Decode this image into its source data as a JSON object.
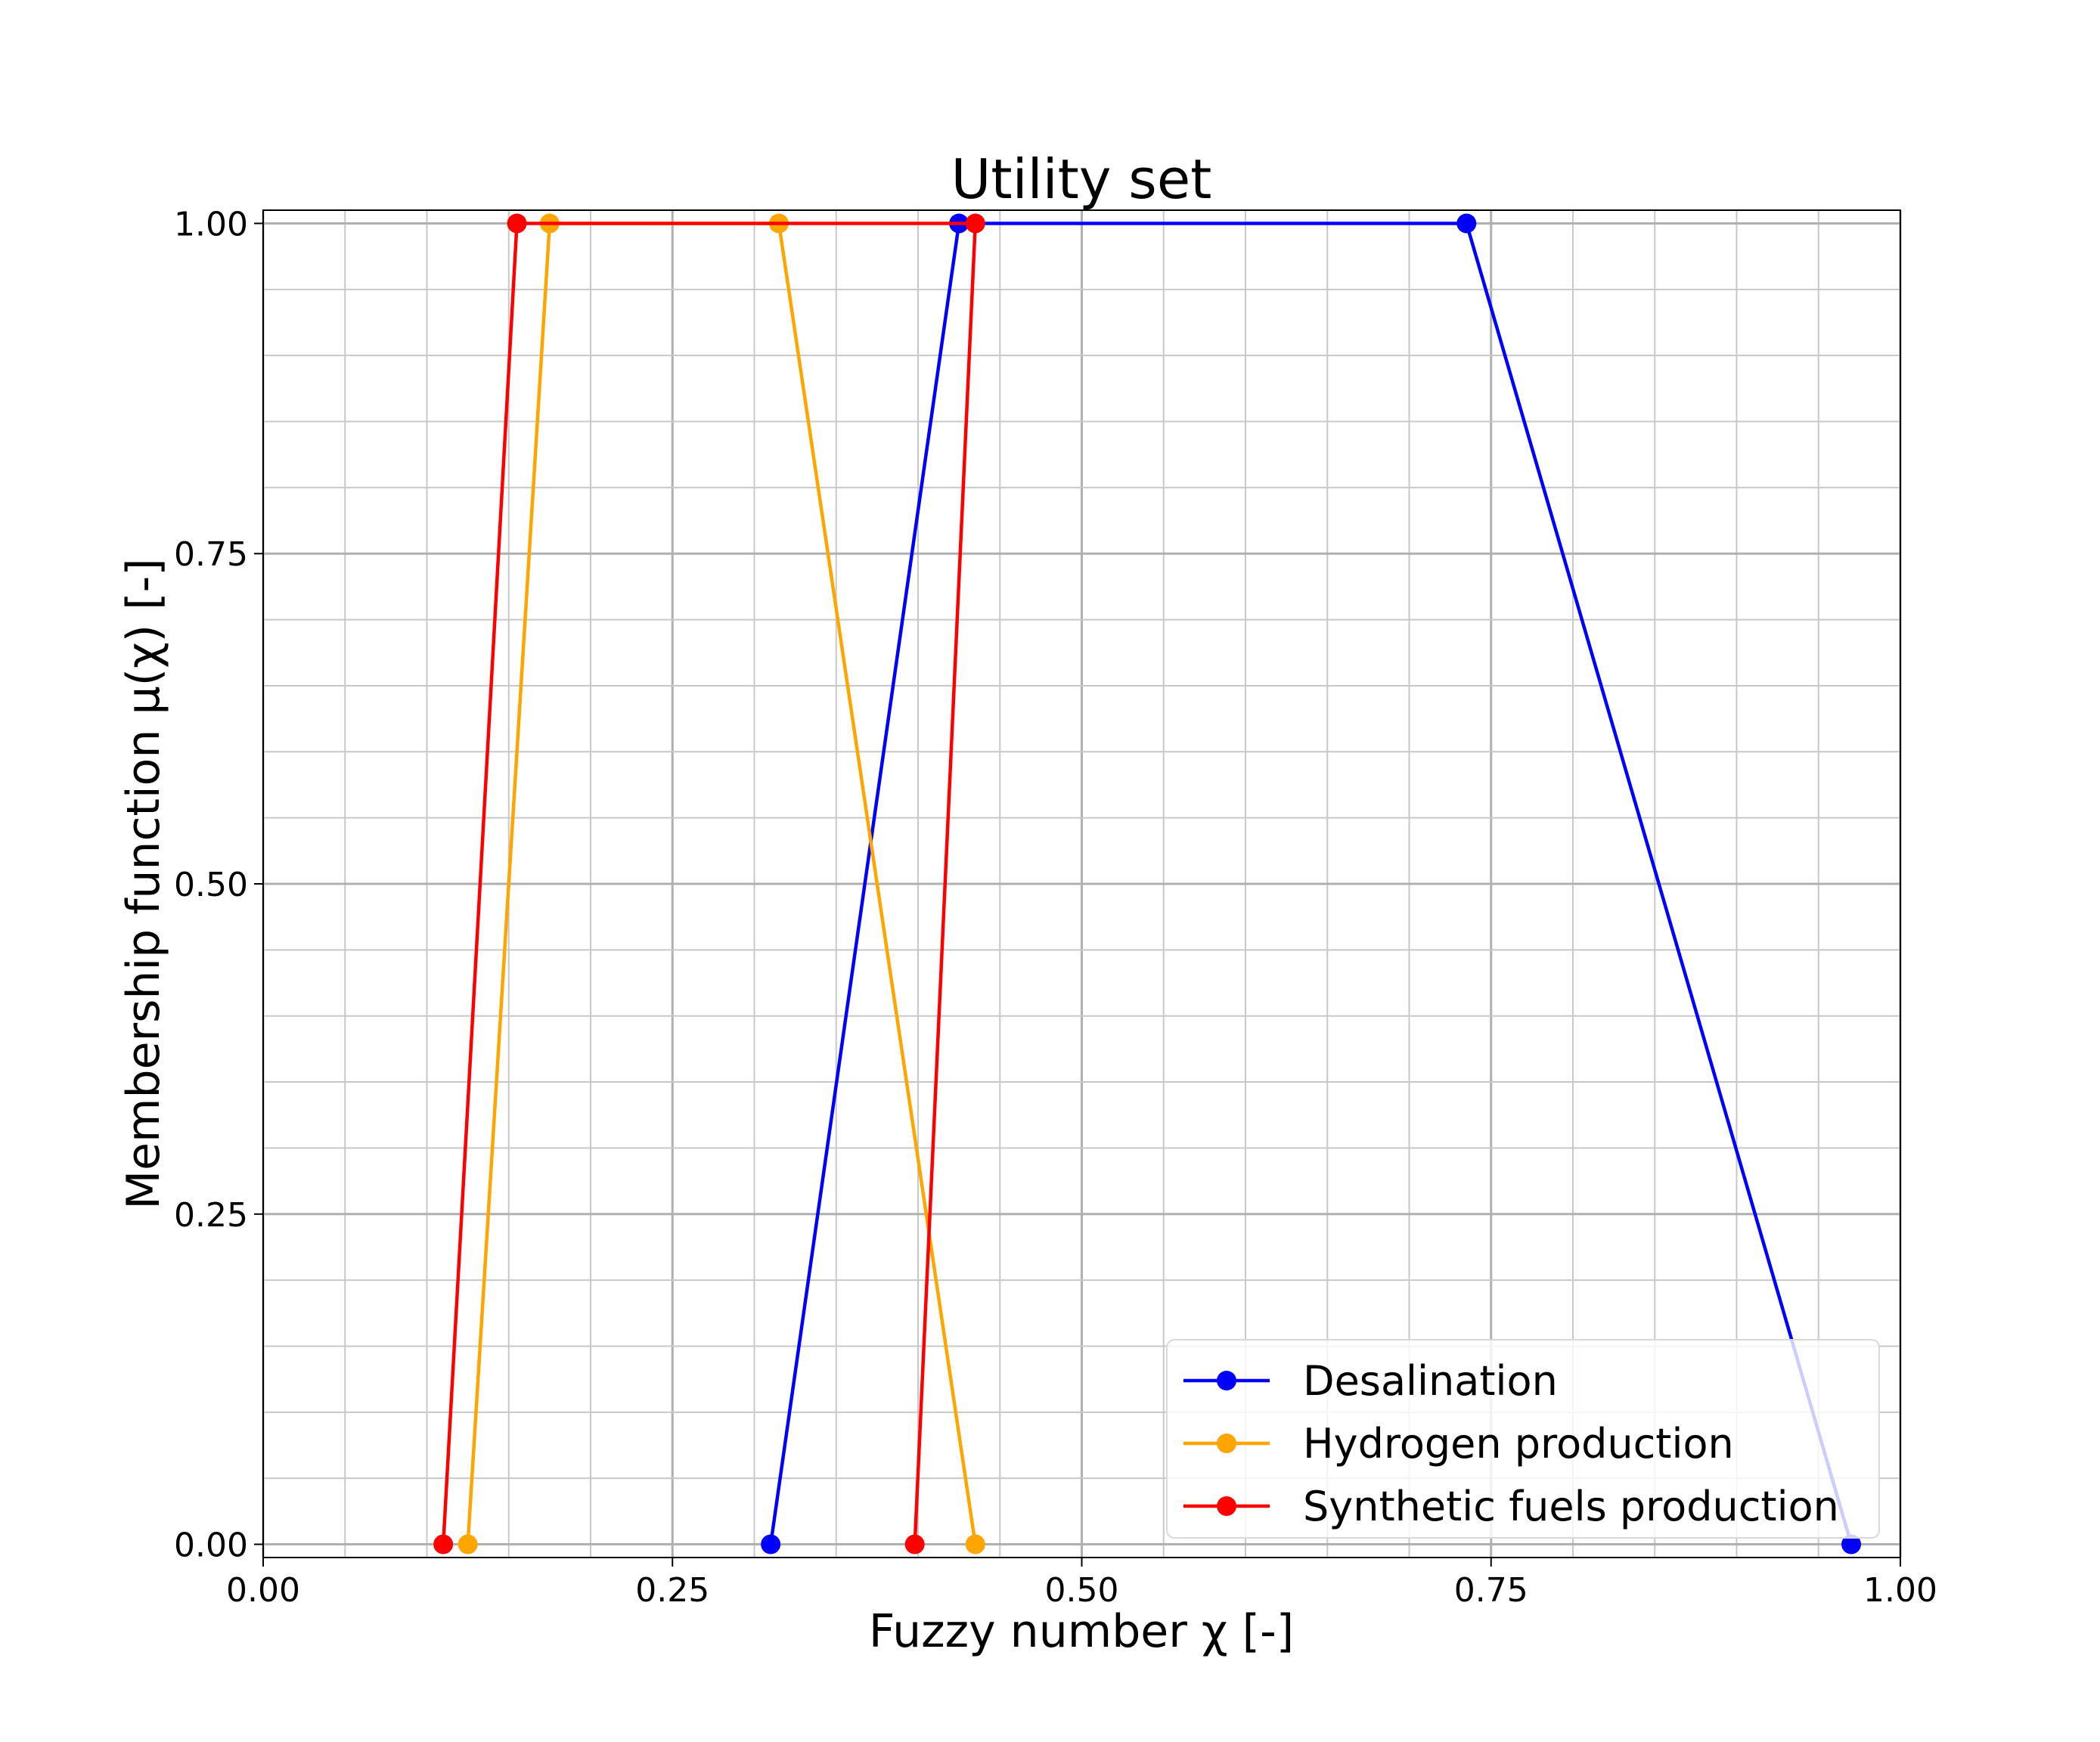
{
  "chart_data": {
    "type": "line",
    "title": "Utility set",
    "xlabel": "Fuzzy number χ [-]",
    "ylabel": "Membership function μ(χ) [-]",
    "xlim": [
      0.0,
      1.0
    ],
    "ylim": [
      -0.01,
      1.01
    ],
    "x_ticks": [
      "0.00",
      "0.25",
      "0.50",
      "0.75",
      "1.00"
    ],
    "y_ticks": [
      "0.00",
      "0.25",
      "0.50",
      "0.75",
      "1.00"
    ],
    "grid": true,
    "legend_position": "lower-right",
    "series": [
      {
        "name": "Desalination",
        "color": "#0000ff",
        "x": [
          0.31,
          0.425,
          0.735,
          0.97
        ],
        "y": [
          0.0,
          1.0,
          1.0,
          0.0
        ]
      },
      {
        "name": "Hydrogen production",
        "color": "#ffa500",
        "x": [
          0.125,
          0.175,
          0.315,
          0.435
        ],
        "y": [
          0.0,
          1.0,
          1.0,
          0.0
        ]
      },
      {
        "name": "Synthetic fuels production",
        "color": "#ff0000",
        "x": [
          0.11,
          0.155,
          0.435,
          0.398
        ],
        "y": [
          0.0,
          1.0,
          1.0,
          0.0
        ]
      }
    ]
  }
}
